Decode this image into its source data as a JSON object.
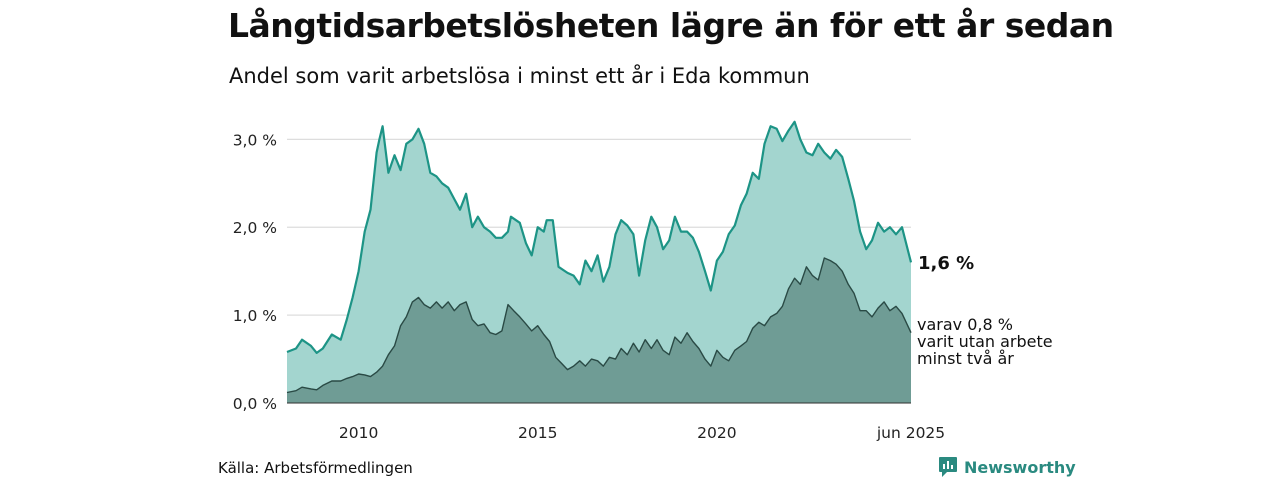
{
  "header": {
    "title": "Långtidsarbetslösheten lägre än för ett år sedan",
    "subtitle": "Andel som varit arbetslösa i minst ett år i Eda kommun"
  },
  "footer": {
    "source": "Källa: Arbetsförmedlingen",
    "brand": "Newsworthy"
  },
  "colors": {
    "area_main": "#a3d5cf",
    "line_main": "#1d9486",
    "area_sub": "#6f9c95",
    "line_sub": "#2a4a45",
    "grid": "#dddddd",
    "brand": "#2a8a80"
  },
  "chart_data": {
    "type": "area",
    "x_unit": "year",
    "ylim": [
      0,
      3.3
    ],
    "xlim": [
      2008.0,
      2025.42
    ],
    "yticks": [
      {
        "value": 0,
        "label": "0,0 %"
      },
      {
        "value": 1,
        "label": "1,0 %"
      },
      {
        "value": 2,
        "label": "2,0 %"
      },
      {
        "value": 3,
        "label": "3,0 %"
      }
    ],
    "xticks": [
      {
        "value": 2010,
        "label": "2010"
      },
      {
        "value": 2015,
        "label": "2015"
      },
      {
        "value": 2020,
        "label": "2020"
      },
      {
        "value": 2025.42,
        "label": "jun 2025"
      }
    ],
    "grid": true,
    "series": [
      {
        "values": [
          [
            2008.0,
            0.58
          ],
          [
            2008.25,
            0.62
          ],
          [
            2008.42,
            0.72
          ],
          [
            2008.67,
            0.65
          ],
          [
            2008.83,
            0.57
          ],
          [
            2009.0,
            0.62
          ],
          [
            2009.25,
            0.78
          ],
          [
            2009.5,
            0.72
          ],
          [
            2009.67,
            0.95
          ],
          [
            2009.83,
            1.2
          ],
          [
            2010.0,
            1.5
          ],
          [
            2010.17,
            1.95
          ],
          [
            2010.33,
            2.2
          ],
          [
            2010.5,
            2.85
          ],
          [
            2010.58,
            3.0
          ],
          [
            2010.67,
            3.15
          ],
          [
            2010.83,
            2.62
          ],
          [
            2011.0,
            2.82
          ],
          [
            2011.17,
            2.65
          ],
          [
            2011.33,
            2.95
          ],
          [
            2011.5,
            3.0
          ],
          [
            2011.67,
            3.12
          ],
          [
            2011.83,
            2.95
          ],
          [
            2012.0,
            2.62
          ],
          [
            2012.17,
            2.58
          ],
          [
            2012.33,
            2.5
          ],
          [
            2012.5,
            2.45
          ],
          [
            2012.67,
            2.32
          ],
          [
            2012.83,
            2.2
          ],
          [
            2013.0,
            2.38
          ],
          [
            2013.17,
            2.0
          ],
          [
            2013.33,
            2.12
          ],
          [
            2013.5,
            2.0
          ],
          [
            2013.67,
            1.95
          ],
          [
            2013.83,
            1.88
          ],
          [
            2014.0,
            1.88
          ],
          [
            2014.17,
            1.95
          ],
          [
            2014.25,
            2.12
          ],
          [
            2014.5,
            2.05
          ],
          [
            2014.67,
            1.82
          ],
          [
            2014.83,
            1.68
          ],
          [
            2015.0,
            2.0
          ],
          [
            2015.17,
            1.95
          ],
          [
            2015.25,
            2.08
          ],
          [
            2015.42,
            2.08
          ],
          [
            2015.58,
            1.55
          ],
          [
            2015.83,
            1.48
          ],
          [
            2016.0,
            1.45
          ],
          [
            2016.17,
            1.35
          ],
          [
            2016.33,
            1.62
          ],
          [
            2016.5,
            1.5
          ],
          [
            2016.67,
            1.68
          ],
          [
            2016.83,
            1.38
          ],
          [
            2017.0,
            1.55
          ],
          [
            2017.17,
            1.92
          ],
          [
            2017.33,
            2.08
          ],
          [
            2017.5,
            2.02
          ],
          [
            2017.67,
            1.92
          ],
          [
            2017.83,
            1.45
          ],
          [
            2018.0,
            1.85
          ],
          [
            2018.17,
            2.12
          ],
          [
            2018.33,
            2.0
          ],
          [
            2018.5,
            1.75
          ],
          [
            2018.67,
            1.85
          ],
          [
            2018.83,
            2.12
          ],
          [
            2019.0,
            1.95
          ],
          [
            2019.17,
            1.95
          ],
          [
            2019.33,
            1.88
          ],
          [
            2019.5,
            1.72
          ],
          [
            2019.67,
            1.5
          ],
          [
            2019.83,
            1.28
          ],
          [
            2020.0,
            1.62
          ],
          [
            2020.17,
            1.72
          ],
          [
            2020.33,
            1.92
          ],
          [
            2020.5,
            2.02
          ],
          [
            2020.67,
            2.25
          ],
          [
            2020.83,
            2.38
          ],
          [
            2021.0,
            2.62
          ],
          [
            2021.17,
            2.55
          ],
          [
            2021.33,
            2.95
          ],
          [
            2021.5,
            3.15
          ],
          [
            2021.67,
            3.12
          ],
          [
            2021.83,
            2.98
          ],
          [
            2022.0,
            3.1
          ],
          [
            2022.17,
            3.2
          ],
          [
            2022.33,
            3.0
          ],
          [
            2022.5,
            2.85
          ],
          [
            2022.67,
            2.82
          ],
          [
            2022.83,
            2.95
          ],
          [
            2023.0,
            2.85
          ],
          [
            2023.17,
            2.78
          ],
          [
            2023.33,
            2.88
          ],
          [
            2023.5,
            2.8
          ],
          [
            2023.67,
            2.55
          ],
          [
            2023.83,
            2.3
          ],
          [
            2024.0,
            1.95
          ],
          [
            2024.17,
            1.75
          ],
          [
            2024.33,
            1.85
          ],
          [
            2024.5,
            2.05
          ],
          [
            2024.67,
            1.95
          ],
          [
            2024.83,
            2.0
          ],
          [
            2025.0,
            1.92
          ],
          [
            2025.17,
            2.0
          ],
          [
            2025.42,
            1.6
          ]
        ]
      },
      {
        "values": [
          [
            2008.0,
            0.12
          ],
          [
            2008.25,
            0.14
          ],
          [
            2008.42,
            0.18
          ],
          [
            2008.67,
            0.16
          ],
          [
            2008.83,
            0.15
          ],
          [
            2009.0,
            0.2
          ],
          [
            2009.25,
            0.25
          ],
          [
            2009.5,
            0.25
          ],
          [
            2009.67,
            0.28
          ],
          [
            2009.83,
            0.3
          ],
          [
            2010.0,
            0.33
          ],
          [
            2010.17,
            0.32
          ],
          [
            2010.33,
            0.3
          ],
          [
            2010.5,
            0.35
          ],
          [
            2010.67,
            0.42
          ],
          [
            2010.83,
            0.55
          ],
          [
            2011.0,
            0.65
          ],
          [
            2011.17,
            0.88
          ],
          [
            2011.33,
            0.98
          ],
          [
            2011.5,
            1.15
          ],
          [
            2011.67,
            1.2
          ],
          [
            2011.83,
            1.12
          ],
          [
            2012.0,
            1.08
          ],
          [
            2012.17,
            1.15
          ],
          [
            2012.33,
            1.08
          ],
          [
            2012.5,
            1.15
          ],
          [
            2012.67,
            1.05
          ],
          [
            2012.83,
            1.12
          ],
          [
            2013.0,
            1.15
          ],
          [
            2013.17,
            0.95
          ],
          [
            2013.33,
            0.88
          ],
          [
            2013.5,
            0.9
          ],
          [
            2013.67,
            0.8
          ],
          [
            2013.83,
            0.78
          ],
          [
            2014.0,
            0.82
          ],
          [
            2014.17,
            1.12
          ],
          [
            2014.33,
            1.05
          ],
          [
            2014.5,
            0.98
          ],
          [
            2014.67,
            0.9
          ],
          [
            2014.83,
            0.82
          ],
          [
            2015.0,
            0.88
          ],
          [
            2015.17,
            0.78
          ],
          [
            2015.33,
            0.7
          ],
          [
            2015.5,
            0.52
          ],
          [
            2015.67,
            0.45
          ],
          [
            2015.83,
            0.38
          ],
          [
            2016.0,
            0.42
          ],
          [
            2016.17,
            0.48
          ],
          [
            2016.33,
            0.42
          ],
          [
            2016.5,
            0.5
          ],
          [
            2016.67,
            0.48
          ],
          [
            2016.83,
            0.42
          ],
          [
            2017.0,
            0.52
          ],
          [
            2017.17,
            0.5
          ],
          [
            2017.33,
            0.62
          ],
          [
            2017.5,
            0.55
          ],
          [
            2017.67,
            0.68
          ],
          [
            2017.83,
            0.58
          ],
          [
            2018.0,
            0.72
          ],
          [
            2018.17,
            0.62
          ],
          [
            2018.33,
            0.72
          ],
          [
            2018.5,
            0.6
          ],
          [
            2018.67,
            0.55
          ],
          [
            2018.83,
            0.75
          ],
          [
            2019.0,
            0.68
          ],
          [
            2019.17,
            0.8
          ],
          [
            2019.33,
            0.7
          ],
          [
            2019.5,
            0.62
          ],
          [
            2019.67,
            0.5
          ],
          [
            2019.83,
            0.42
          ],
          [
            2020.0,
            0.6
          ],
          [
            2020.17,
            0.52
          ],
          [
            2020.33,
            0.48
          ],
          [
            2020.5,
            0.6
          ],
          [
            2020.67,
            0.65
          ],
          [
            2020.83,
            0.7
          ],
          [
            2021.0,
            0.85
          ],
          [
            2021.17,
            0.92
          ],
          [
            2021.33,
            0.88
          ],
          [
            2021.5,
            0.98
          ],
          [
            2021.67,
            1.02
          ],
          [
            2021.83,
            1.1
          ],
          [
            2022.0,
            1.3
          ],
          [
            2022.17,
            1.42
          ],
          [
            2022.33,
            1.35
          ],
          [
            2022.5,
            1.55
          ],
          [
            2022.67,
            1.45
          ],
          [
            2022.83,
            1.4
          ],
          [
            2023.0,
            1.65
          ],
          [
            2023.17,
            1.62
          ],
          [
            2023.33,
            1.58
          ],
          [
            2023.5,
            1.5
          ],
          [
            2023.67,
            1.35
          ],
          [
            2023.83,
            1.25
          ],
          [
            2024.0,
            1.05
          ],
          [
            2024.17,
            1.05
          ],
          [
            2024.33,
            0.98
          ],
          [
            2024.5,
            1.08
          ],
          [
            2024.67,
            1.15
          ],
          [
            2024.83,
            1.05
          ],
          [
            2025.0,
            1.1
          ],
          [
            2025.17,
            1.02
          ],
          [
            2025.42,
            0.8
          ]
        ]
      }
    ],
    "end_labels": {
      "main": "1,6 %",
      "sub": [
        "varav 0,8 %",
        "varit utan arbete",
        "minst två år"
      ]
    }
  }
}
